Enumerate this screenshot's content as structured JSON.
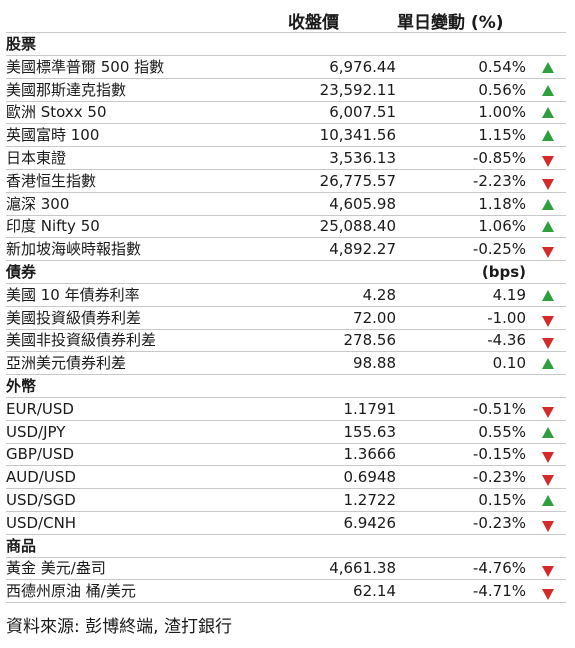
{
  "header": {
    "close_label": "收盤價",
    "change_label": "單日變動 (%)"
  },
  "sections": [
    {
      "title": "股票",
      "units": "",
      "rows": [
        {
          "name": "美國標準普爾 500 指數",
          "close": "6,976.44",
          "change": "0.54%",
          "dir": "up"
        },
        {
          "name": "美國那斯達克指數",
          "close": "23,592.11",
          "change": "0.56%",
          "dir": "up"
        },
        {
          "name": "歐洲 Stoxx 50",
          "close": "6,007.51",
          "change": "1.00%",
          "dir": "up"
        },
        {
          "name": "英國富時 100",
          "close": "10,341.56",
          "change": "1.15%",
          "dir": "up"
        },
        {
          "name": "日本東證",
          "close": "3,536.13",
          "change": "-0.85%",
          "dir": "down"
        },
        {
          "name": "香港恒生指數",
          "close": "26,775.57",
          "change": "-2.23%",
          "dir": "down"
        },
        {
          "name": "滬深 300",
          "close": "4,605.98",
          "change": "1.18%",
          "dir": "up"
        },
        {
          "name": "印度 Nifty 50",
          "close": "25,088.40",
          "change": "1.06%",
          "dir": "up"
        },
        {
          "name": "新加坡海峽時報指數",
          "close": "4,892.27",
          "change": "-0.25%",
          "dir": "down"
        }
      ]
    },
    {
      "title": "債券",
      "units": "(bps)",
      "rows": [
        {
          "name": "美國 10 年債券利率",
          "close": "4.28",
          "change": "4.19",
          "dir": "up"
        },
        {
          "name": "美國投資級債券利差",
          "close": "72.00",
          "change": "-1.00",
          "dir": "down"
        },
        {
          "name": "美國非投資級債券利差",
          "close": "278.56",
          "change": "-4.36",
          "dir": "down"
        },
        {
          "name": "亞洲美元債券利差",
          "close": "98.88",
          "change": "0.10",
          "dir": "up"
        }
      ]
    },
    {
      "title": "外幣",
      "units": "",
      "rows": [
        {
          "name": "EUR/USD",
          "close": "1.1791",
          "change": "-0.51%",
          "dir": "down"
        },
        {
          "name": "USD/JPY",
          "close": "155.63",
          "change": "0.55%",
          "dir": "up"
        },
        {
          "name": "GBP/USD",
          "close": "1.3666",
          "change": "-0.15%",
          "dir": "down"
        },
        {
          "name": "AUD/USD",
          "close": "0.6948",
          "change": "-0.23%",
          "dir": "down"
        },
        {
          "name": "USD/SGD",
          "close": "1.2722",
          "change": "0.15%",
          "dir": "up"
        },
        {
          "name": "USD/CNH",
          "close": "6.9426",
          "change": "-0.23%",
          "dir": "down"
        }
      ]
    },
    {
      "title": "商品",
      "units": "",
      "rows": [
        {
          "name": "黃金 美元/盎司",
          "close": "4,661.38",
          "change": "-4.76%",
          "dir": "down"
        },
        {
          "name": "西德州原油 桶/美元",
          "close": "62.14",
          "change": "-4.71%",
          "dir": "down"
        }
      ]
    }
  ],
  "colors": {
    "up": "#2e9e3e",
    "down": "#d42a2a"
  },
  "icons": {
    "up": "triangle-up-icon",
    "down": "triangle-down-icon"
  },
  "source": "資料來源: 彭博終端, 渣打銀行"
}
